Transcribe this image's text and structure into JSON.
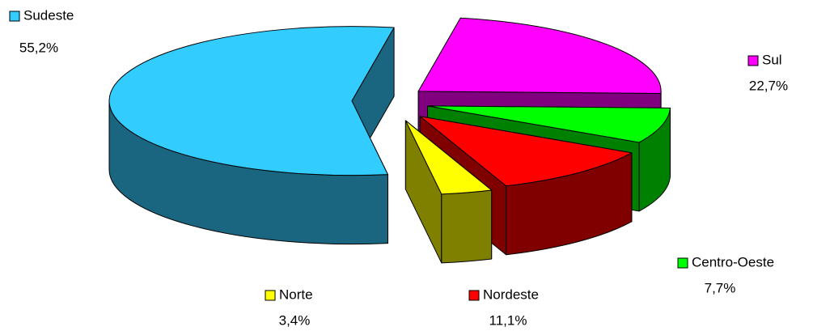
{
  "chart_data": {
    "type": "pie",
    "categories": [
      "Sul",
      "Centro-Oeste",
      "Nordeste",
      "Norte",
      "Sudeste"
    ],
    "values": [
      22.7,
      7.7,
      11.1,
      3.4,
      55.2
    ],
    "value_labels": [
      "22,7%",
      "7,7%",
      "11,1%",
      "3,4%",
      "55,2%"
    ],
    "colors": [
      "#ff00ff",
      "#00ff00",
      "#ff0000",
      "#ffff00",
      "#33ccff"
    ]
  }
}
